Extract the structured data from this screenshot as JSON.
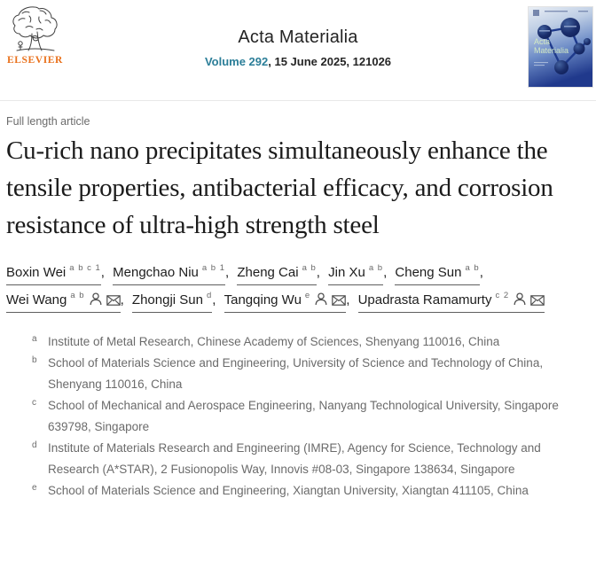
{
  "header": {
    "publisher": "ELSEVIER",
    "journal_title": "Acta Materialia",
    "volume_link": "Volume 292",
    "issue_info": ", 15 June 2025, 121026",
    "cover_line1": "Acta",
    "cover_line2": "Materialia"
  },
  "article": {
    "type_label": "Full length article",
    "title": "Cu-rich nano precipitates simultaneously enhance the tensile properties, antibacterial efficacy, and corrosion resistance of ultra-high strength steel"
  },
  "authors": [
    {
      "name": "Boxin Wei",
      "sup": "a b c 1",
      "icons": false
    },
    {
      "name": "Mengchao Niu",
      "sup": "a b 1",
      "icons": false
    },
    {
      "name": "Zheng Cai",
      "sup": "a b",
      "icons": false
    },
    {
      "name": "Jin Xu",
      "sup": "a b",
      "icons": false
    },
    {
      "name": "Cheng Sun",
      "sup": "a b",
      "icons": false
    },
    {
      "name": "Wei Wang",
      "sup": "a b",
      "icons": true
    },
    {
      "name": "Zhongji Sun",
      "sup": "d",
      "icons": false
    },
    {
      "name": "Tangqing Wu",
      "sup": "e",
      "icons": true
    },
    {
      "name": "Upadrasta Ramamurty",
      "sup": "c 2",
      "icons": true
    }
  ],
  "affiliations": [
    {
      "label": "a",
      "text": "Institute of Metal Research, Chinese Academy of Sciences, Shenyang 110016, China"
    },
    {
      "label": "b",
      "text": "School of Materials Science and Engineering, University of Science and Technology of China, Shenyang 110016, China"
    },
    {
      "label": "c",
      "text": "School of Mechanical and Aerospace Engineering, Nanyang Technological University, Singapore 639798, Singapore"
    },
    {
      "label": "d",
      "text": "Institute of Materials Research and Engineering (IMRE), Agency for Science, Technology and Research (A*STAR), 2 Fusionopolis Way, Innovis #08-03, Singapore 138634, Singapore"
    },
    {
      "label": "e",
      "text": "School of Materials Science and Engineering, Xiangtan University, Xiangtan 411105, China"
    }
  ],
  "colors": {
    "elsevier_orange": "#e9711c",
    "volume_link_teal": "#2b7e98",
    "title_ink": "#1b1b1b",
    "muted_gray": "#6b6b6b",
    "divider": "#e8e8e8",
    "cover_navy": "#0c1c55"
  }
}
